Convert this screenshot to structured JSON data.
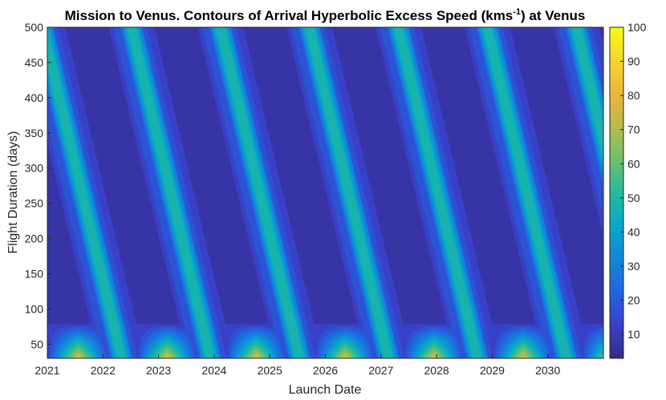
{
  "chart_data": {
    "type": "heatmap",
    "title_main": "Mission to Venus. Contours of Arrival Hyperbolic Excess Speed (kms",
    "title_sup": "-1",
    "title_tail": ") at Venus",
    "xlabel": "Launch Date",
    "ylabel": "Flight Duration (days)",
    "xlim": [
      2021,
      2031
    ],
    "ylim": [
      30,
      500
    ],
    "x_ticks": [
      "2021",
      "2022",
      "2023",
      "2024",
      "2025",
      "2026",
      "2027",
      "2028",
      "2029",
      "2030"
    ],
    "y_ticks": [
      50,
      100,
      150,
      200,
      250,
      300,
      350,
      400,
      450,
      500
    ],
    "colorbar": {
      "min": 3,
      "max": 100,
      "ticks": [
        10,
        20,
        30,
        40,
        50,
        60,
        70,
        80,
        90,
        100
      ]
    },
    "synodic_period_years": 1.6,
    "colormap": "parula",
    "grid": false,
    "legend": "none"
  }
}
